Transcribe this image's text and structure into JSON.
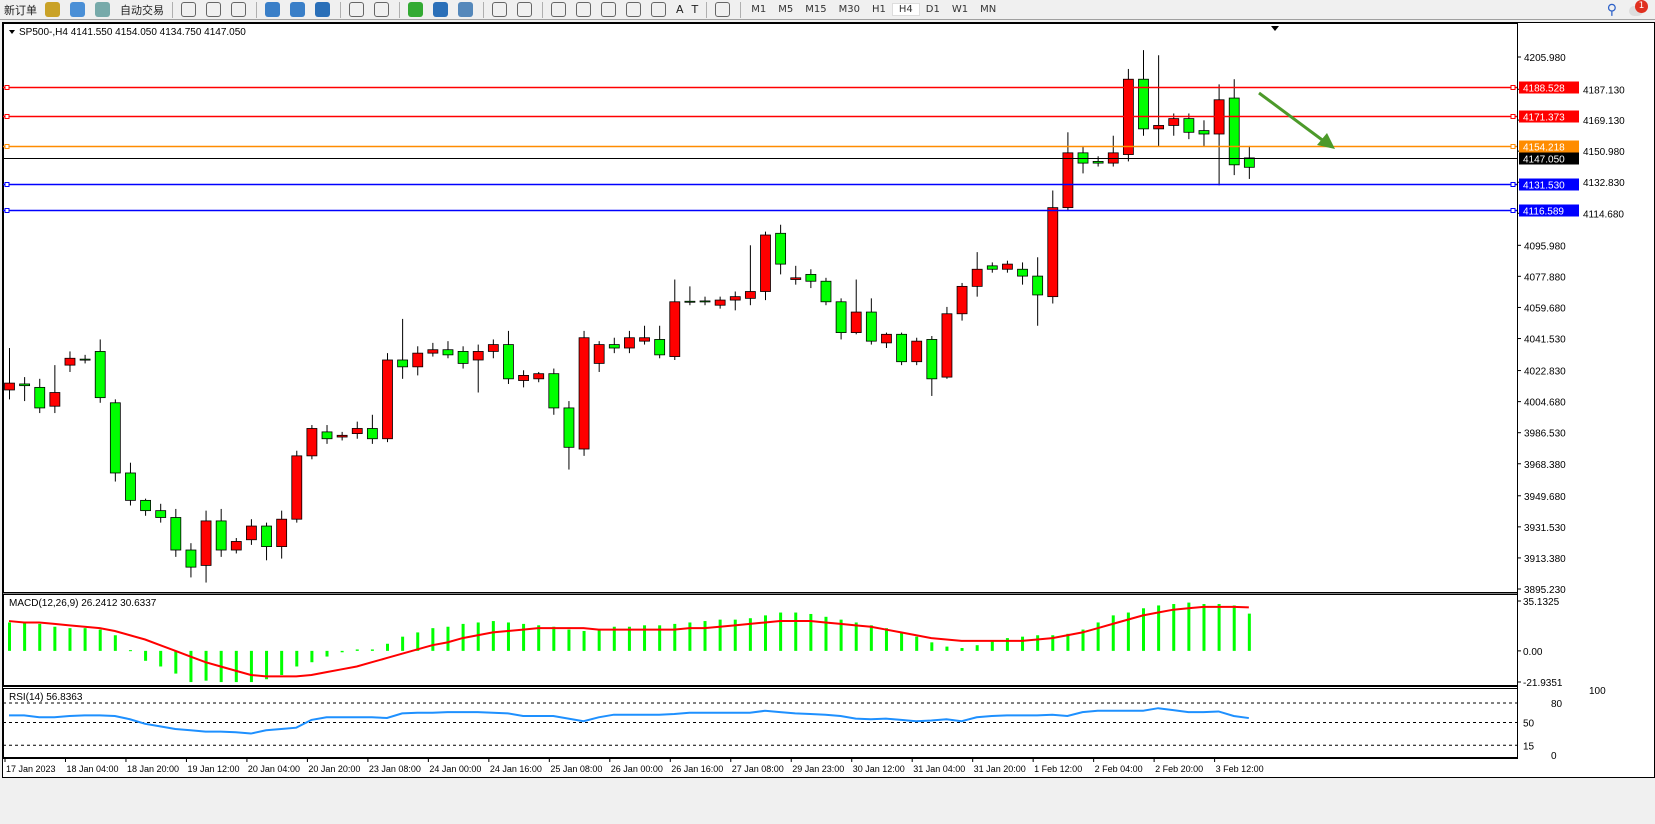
{
  "toolbar": {
    "items": [
      {
        "label": "新订单",
        "icon": "new-order-icon"
      },
      {
        "label": "",
        "icon": "history-center-icon"
      },
      {
        "label": "",
        "icon": "options-icon"
      },
      {
        "label": "",
        "icon": "signals-icon"
      },
      {
        "label": "自动交易",
        "icon": "autotrading-icon"
      },
      {
        "label": "",
        "icon": "bar-chart-icon"
      },
      {
        "label": "",
        "icon": "candlestick-icon"
      },
      {
        "label": "",
        "icon": "line-chart-icon"
      },
      {
        "label": "",
        "icon": "zoom-in-icon"
      },
      {
        "label": "",
        "icon": "zoom-out-icon"
      },
      {
        "label": "",
        "icon": "tile-windows-icon"
      },
      {
        "label": "",
        "icon": "chart-shift-icon"
      },
      {
        "label": "",
        "icon": "autoscroll-icon"
      },
      {
        "label": "",
        "icon": "indicators-icon"
      },
      {
        "label": "",
        "icon": "periods-icon"
      },
      {
        "label": "",
        "icon": "templates-icon"
      },
      {
        "label": "",
        "icon": "cursor-icon"
      },
      {
        "label": "",
        "icon": "crosshair-icon"
      },
      {
        "label": "",
        "icon": "vertical-line-icon"
      },
      {
        "label": "",
        "icon": "horizontal-line-icon"
      },
      {
        "label": "",
        "icon": "trendline-icon"
      },
      {
        "label": "",
        "icon": "equidistant-channel-icon"
      },
      {
        "label": "",
        "icon": "fibonacci-icon"
      },
      {
        "label": "A",
        "icon": "text-icon"
      },
      {
        "label": "T",
        "icon": "text-label-icon"
      },
      {
        "label": "",
        "icon": "arrows-icon"
      }
    ],
    "timeframes": [
      "M1",
      "M5",
      "M15",
      "M30",
      "H1",
      "H4",
      "D1",
      "W1",
      "MN"
    ],
    "active_timeframe": "H4",
    "notification_count": "1"
  },
  "chart": {
    "header": "SP500-,H4  4141.550 4154.050 4134.750 4147.050",
    "macd_label": "MACD(12,26,9) 26.2412 30.6337",
    "rsi_label": "RSI(14) 56.8363"
  },
  "chart_data": [
    {
      "type": "candlestick",
      "symbol": "SP500-",
      "timeframe": "H4",
      "ylim": [
        3895.23,
        4205.98
      ],
      "y_ticks": [
        "4205.980",
        "4187.130",
        "4169.130",
        "4150.980",
        "4132.830",
        "4114.680",
        "4095.980",
        "4077.880",
        "4059.680",
        "4041.530",
        "4022.830",
        "4004.680",
        "3986.530",
        "3968.380",
        "3949.680",
        "3931.530",
        "3913.380",
        "3895.230"
      ],
      "x_ticks": [
        "17 Jan 2023",
        "18 Jan 04:00",
        "18 Jan 20:00",
        "19 Jan 12:00",
        "20 Jan 04:00",
        "20 Jan 20:00",
        "23 Jan 08:00",
        "24 Jan 00:00",
        "24 Jan 16:00",
        "25 Jan 08:00",
        "26 Jan 00:00",
        "26 Jan 16:00",
        "27 Jan 08:00",
        "29 Jan 23:00",
        "30 Jan 12:00",
        "31 Jan 04:00",
        "31 Jan 20:00",
        "1 Feb 12:00",
        "2 Feb 04:00",
        "2 Feb 20:00",
        "3 Feb 12:00"
      ],
      "ohlc": [
        [
          4015.5,
          4036,
          4006,
          4011.5
        ],
        [
          4014,
          4019,
          4005,
          4015
        ],
        [
          4001,
          4018,
          3998,
          4013
        ],
        [
          4010,
          4026,
          3998,
          4002
        ],
        [
          4030,
          4034,
          4022,
          4026
        ],
        [
          4029,
          4032,
          4027,
          4029.5
        ],
        [
          4007,
          4041,
          4004,
          4034
        ],
        [
          3963,
          4006,
          3958,
          4004
        ],
        [
          3947,
          3969,
          3944,
          3963
        ],
        [
          3941,
          3948,
          3938,
          3947
        ],
        [
          3937,
          3945,
          3934,
          3941
        ],
        [
          3918,
          3942,
          3914,
          3937
        ],
        [
          3908,
          3922,
          3902,
          3918
        ],
        [
          3935,
          3941,
          3899,
          3909
        ],
        [
          3918,
          3942,
          3914,
          3935
        ],
        [
          3923,
          3925,
          3916,
          3918
        ],
        [
          3932,
          3936,
          3921,
          3924
        ],
        [
          3920,
          3934,
          3912,
          3932
        ],
        [
          3936,
          3941,
          3913,
          3920
        ],
        [
          3973,
          3976,
          3934,
          3936
        ],
        [
          3989,
          3991,
          3971,
          3973
        ],
        [
          3983,
          3991,
          3980,
          3987
        ],
        [
          3985,
          3987,
          3982,
          3984
        ],
        [
          3989,
          3993,
          3983,
          3986
        ],
        [
          3983,
          3997,
          3980,
          3989
        ],
        [
          4029,
          4033,
          3981,
          3983
        ],
        [
          4025,
          4053,
          4018,
          4029
        ],
        [
          4033,
          4037,
          4020,
          4025
        ],
        [
          4035,
          4039,
          4031,
          4033
        ],
        [
          4032,
          4040,
          4030,
          4035
        ],
        [
          4027,
          4037,
          4024,
          4034
        ],
        [
          4034,
          4038,
          4010,
          4029
        ],
        [
          4038,
          4041,
          4030,
          4034
        ],
        [
          4018,
          4046,
          4015,
          4038
        ],
        [
          4020,
          4023,
          4013,
          4017
        ],
        [
          4021,
          4022,
          4016,
          4018
        ],
        [
          4001,
          4024,
          3997,
          4021
        ],
        [
          3978,
          4005,
          3965,
          4001
        ],
        [
          4042,
          4046,
          3973,
          3977
        ],
        [
          4038,
          4040,
          4022,
          4027
        ],
        [
          4036,
          4042,
          4033,
          4038
        ],
        [
          4042,
          4046,
          4033,
          4036
        ],
        [
          4042,
          4049,
          4038,
          4040
        ],
        [
          4032,
          4049,
          4030,
          4041
        ],
        [
          4063,
          4076,
          4029,
          4031
        ],
        [
          4063,
          4072,
          4061,
          4063.3
        ],
        [
          4063,
          4066,
          4061,
          4063.5
        ],
        [
          4064,
          4066,
          4059,
          4061
        ],
        [
          4066,
          4069,
          4058,
          4064
        ],
        [
          4069,
          4096,
          4061,
          4065
        ],
        [
          4102,
          4104,
          4064,
          4069
        ],
        [
          4085,
          4108,
          4079,
          4103
        ],
        [
          4077,
          4084,
          4073,
          4076
        ],
        [
          4075,
          4082,
          4071,
          4079
        ],
        [
          4063,
          4077,
          4061,
          4075
        ],
        [
          4045,
          4065,
          4041,
          4063
        ],
        [
          4057,
          4076,
          4044,
          4045
        ],
        [
          4040,
          4065,
          4038,
          4057
        ],
        [
          4044,
          4045,
          4036,
          4039
        ],
        [
          4028,
          4045,
          4026,
          4044
        ],
        [
          4040,
          4042,
          4026,
          4028
        ],
        [
          4018,
          4043,
          4008,
          4041
        ],
        [
          4056,
          4060,
          4018,
          4019
        ],
        [
          4072,
          4074,
          4052,
          4056
        ],
        [
          4082,
          4092,
          4066,
          4072
        ],
        [
          4082,
          4086,
          4080,
          4084
        ],
        [
          4085,
          4087,
          4080,
          4082
        ],
        [
          4078,
          4086,
          4073,
          4082
        ],
        [
          4067,
          4089,
          4049,
          4078
        ],
        [
          4118,
          4128,
          4062,
          4066
        ],
        [
          4150,
          4162,
          4116,
          4118
        ],
        [
          4144,
          4154,
          4138,
          4150
        ],
        [
          4144,
          4148,
          4142,
          4145
        ],
        [
          4150,
          4160,
          4142,
          4144
        ],
        [
          4193,
          4199,
          4145,
          4149
        ],
        [
          4164,
          4210,
          4160,
          4193
        ],
        [
          4166,
          4207,
          4154,
          4164
        ],
        [
          4170,
          4173,
          4160,
          4166
        ],
        [
          4162,
          4173,
          4158,
          4170
        ],
        [
          4161,
          4169,
          4154,
          4163
        ],
        [
          4181,
          4190,
          4131,
          4161
        ],
        [
          4143,
          4193,
          4137,
          4182
        ],
        [
          4141.55,
          4154.05,
          4134.75,
          4147.05
        ]
      ],
      "horizontal_lines": [
        {
          "price": "4188.528",
          "color": "#ff0000"
        },
        {
          "price": "4171.373",
          "color": "#ff0000"
        },
        {
          "price": "4154.218",
          "color": "#ff8c00"
        },
        {
          "price": "4147.050",
          "color": "#000000"
        },
        {
          "price": "4131.530",
          "color": "#0000ff"
        },
        {
          "price": "4116.589",
          "color": "#0000ff"
        }
      ],
      "arrow": {
        "color": "#4c9a2a",
        "direction": "down-right"
      },
      "colors": {
        "bull": "#00ff00",
        "bear": "#ff0000"
      }
    },
    {
      "type": "macd",
      "ylim": [
        -21.9351,
        35.1325
      ],
      "y_ticks": [
        "35.1325",
        "0.00",
        "-21.9351"
      ],
      "main": [
        20,
        20,
        19,
        17,
        16,
        16,
        15,
        11,
        0.5,
        -7,
        -11,
        -16,
        -22,
        -21,
        -22,
        -22,
        -22,
        -20,
        -17,
        -11,
        -8,
        -4,
        -1,
        1,
        1,
        5,
        10,
        13,
        16,
        17,
        19,
        20,
        21,
        20,
        19,
        18,
        17,
        15,
        14,
        15,
        17,
        17,
        18,
        18,
        19,
        20,
        21,
        22,
        22,
        23,
        25,
        27,
        27,
        26,
        24,
        22,
        20,
        18,
        16,
        13,
        10,
        6,
        3,
        2,
        4,
        7,
        9,
        10,
        11,
        11,
        12,
        15,
        20,
        25,
        27,
        30,
        32,
        33,
        34,
        33,
        33,
        32,
        26.2412
      ],
      "signal": [
        21,
        20,
        20,
        19,
        18,
        17,
        16,
        14,
        11,
        8,
        4,
        0,
        -4,
        -8,
        -11,
        -14,
        -17,
        -18,
        -18,
        -18,
        -17,
        -15,
        -13,
        -11,
        -8,
        -5,
        -2,
        1,
        4,
        6,
        9,
        11,
        13,
        14,
        15,
        16,
        16,
        16,
        16,
        15,
        15,
        15,
        15,
        15,
        15,
        16,
        16,
        17,
        18,
        19,
        20,
        21,
        21,
        21,
        20,
        19,
        18,
        17,
        15,
        13,
        11,
        9,
        8,
        7,
        7,
        7,
        7,
        7,
        8,
        9,
        11,
        13,
        16,
        19,
        22,
        25,
        27,
        29,
        30,
        31,
        31,
        31,
        30.6337
      ],
      "colors": {
        "histogram": "#00ff00",
        "signal": "#ff0000"
      }
    },
    {
      "type": "line",
      "name": "RSI(14)",
      "ylim": [
        0,
        100
      ],
      "y_ticks": [
        "100",
        "80",
        "50",
        "15",
        "0"
      ],
      "levels": [
        80,
        50,
        15
      ],
      "values": [
        61,
        61,
        58,
        58,
        60,
        61,
        61,
        60,
        55,
        48,
        44,
        40,
        38,
        36,
        36,
        35,
        33,
        38,
        40,
        42,
        54,
        58,
        58,
        58,
        58,
        57,
        64,
        65,
        65,
        66,
        66,
        66,
        65,
        64,
        60,
        60,
        60,
        56,
        52,
        58,
        62,
        62,
        62,
        62,
        63,
        65,
        65,
        65,
        65,
        65,
        68,
        66,
        64,
        63,
        62,
        60,
        56,
        55,
        56,
        54,
        52,
        53,
        55,
        52,
        58,
        60,
        61,
        61,
        61,
        62,
        60,
        66,
        68,
        68,
        68,
        68,
        72,
        69,
        66,
        66,
        67,
        60,
        56.8363
      ],
      "color": "#1e90ff"
    }
  ]
}
